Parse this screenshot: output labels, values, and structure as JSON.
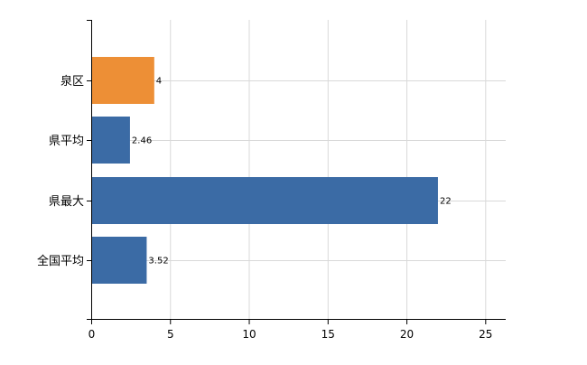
{
  "chart_data": {
    "type": "bar",
    "orientation": "horizontal",
    "categories": [
      "泉区",
      "県平均",
      "県最大",
      "全国平均"
    ],
    "values": [
      4,
      2.46,
      22,
      3.52
    ],
    "value_labels": [
      "4",
      "2.46",
      "22",
      "3.52"
    ],
    "bar_colors": [
      "#ed8f36",
      "#3b6ba5",
      "#3b6ba5",
      "#3b6ba5"
    ],
    "title": "",
    "xlabel": "",
    "ylabel": "",
    "xlim": [
      0,
      26.3
    ],
    "xticks": [
      0,
      5,
      10,
      15,
      20,
      25
    ],
    "xtick_labels": [
      "0",
      "5",
      "10",
      "15",
      "20",
      "25"
    ],
    "grid": "vertical",
    "legend": "none"
  },
  "colors": {
    "grid": "#d9d9d9",
    "axis": "#000000",
    "text": "#000000"
  }
}
